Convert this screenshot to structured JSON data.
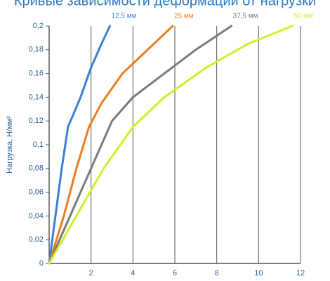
{
  "chart_data": {
    "type": "line",
    "title": "Кривые зависимости деформации от нагрузки",
    "y_label": "Нагрузка, Н/мм²",
    "xlim": [
      0,
      12
    ],
    "xticks": [
      2,
      4,
      6,
      8,
      10,
      12
    ],
    "ylim": [
      0,
      0.2
    ],
    "yticks": [
      {
        "value": 0,
        "label": "0"
      },
      {
        "value": 0.02,
        "label": "0,02"
      },
      {
        "value": 0.04,
        "label": "0,04"
      },
      {
        "value": 0.06,
        "label": "0,06"
      },
      {
        "value": 0.08,
        "label": "0,08"
      },
      {
        "value": 0.1,
        "label": "0,1"
      },
      {
        "value": 0.12,
        "label": "0,12"
      },
      {
        "value": 0.14,
        "label": "0,14"
      },
      {
        "value": 0.16,
        "label": "0,16"
      },
      {
        "value": 0.18,
        "label": "0,18"
      },
      {
        "value": 0.2,
        "label": "0,2"
      }
    ],
    "grid": true,
    "series": [
      {
        "name": "12,5 мм",
        "color": "#3a7fd5",
        "x": [
          0,
          0.3,
          0.6,
          0.9,
          1.5,
          2,
          2.5,
          2.9
        ],
        "values": [
          0,
          0.04,
          0.08,
          0.115,
          0.14,
          0.165,
          0.185,
          0.2
        ]
      },
      {
        "name": "25 мм",
        "color": "#ee7d1f",
        "x": [
          0,
          0.7,
          1.3,
          1.9,
          2.5,
          3.5,
          4.7,
          5.9
        ],
        "values": [
          0,
          0.04,
          0.08,
          0.115,
          0.135,
          0.16,
          0.18,
          0.2
        ]
      },
      {
        "name": "37,5 мм",
        "color": "#7a7a7a",
        "x": [
          0,
          1,
          2,
          3,
          4,
          5.5,
          7,
          8.7
        ],
        "values": [
          0,
          0.04,
          0.08,
          0.12,
          0.14,
          0.16,
          0.18,
          0.2
        ]
      },
      {
        "name": "50 мм",
        "color": "#d5ee2c",
        "x": [
          0,
          1.3,
          2.6,
          4,
          5.5,
          7.5,
          9.5,
          11.6
        ],
        "values": [
          0,
          0.04,
          0.08,
          0.115,
          0.14,
          0.165,
          0.185,
          0.2
        ]
      }
    ]
  }
}
